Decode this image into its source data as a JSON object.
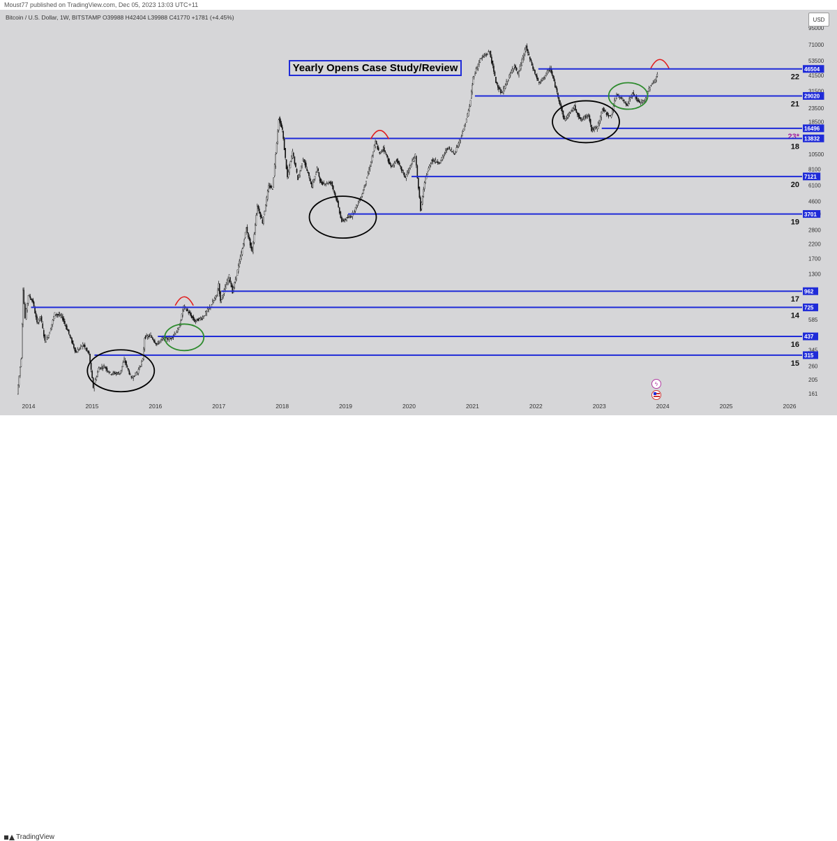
{
  "header": {
    "published": "Moust77 published on TradingView.com, Dec 05, 2023 13:03 UTC+11",
    "symbol_line": "Bitcoin / U.S. Dollar, 1W, BITSTAMP  O39988  H42404  L39988  C41770  +1781 (+4.45%)",
    "currency_button": "USD"
  },
  "footer": {
    "brand": "TradingView"
  },
  "badges": {
    "lightning_icon": "lightning-icon",
    "flag_icon": "us-flag-icon"
  },
  "colors": {
    "level_line": "#1f2bd8",
    "plot_bg": "#d6d6d8",
    "top_mark": "#e11d1d",
    "green_circle": "#2e8b2e",
    "black_circle": "#000000",
    "label_23": "#a020a0"
  },
  "chart_data": {
    "type": "candlestick",
    "title": "Yearly Opens Case Study/Review",
    "scale": "log",
    "y_ticks": [
      95000,
      71000,
      53500,
      41500,
      31500,
      23500,
      18500,
      13500,
      10500,
      8100,
      6100,
      4600,
      3700,
      2800,
      2200,
      1700,
      1300,
      985,
      740,
      585,
      440,
      345,
      260,
      205,
      161
    ],
    "x_ticks": [
      "2014",
      "2015",
      "2016",
      "2017",
      "2018",
      "2019",
      "2020",
      "2021",
      "2022",
      "2023",
      "2024",
      "2025",
      "2026"
    ],
    "yearly_open_levels": [
      {
        "value": 46504,
        "label": "46504",
        "year": "22",
        "start_date": "2022-01"
      },
      {
        "value": 29020,
        "label": "29020",
        "year": "21",
        "start_date": "2021-01"
      },
      {
        "value": 16496,
        "label": "16496",
        "year": "23*",
        "start_date": "2023-01"
      },
      {
        "value": 13832,
        "label": "13832",
        "year": "18",
        "start_date": "2018-01"
      },
      {
        "value": 7121,
        "label": "7121",
        "year": "20",
        "start_date": "2020-01"
      },
      {
        "value": 3701,
        "label": "3701",
        "year": "19",
        "start_date": "2019-01"
      },
      {
        "value": 962,
        "label": "962",
        "year": "17",
        "start_date": "2017-01"
      },
      {
        "value": 725,
        "label": "725",
        "year": "14",
        "start_date": "2014-01"
      },
      {
        "value": 437,
        "label": "437",
        "year": "16",
        "start_date": "2016-01"
      },
      {
        "value": 315,
        "label": "315",
        "year": "15",
        "start_date": "2015-01"
      }
    ],
    "price_path": [
      [
        "2013-11-01",
        160
      ],
      [
        "2013-11-25",
        300
      ],
      [
        "2013-12-04",
        1000
      ],
      [
        "2013-12-18",
        600
      ],
      [
        "2014-01-05",
        900
      ],
      [
        "2014-02-01",
        800
      ],
      [
        "2014-02-25",
        550
      ],
      [
        "2014-03-15",
        620
      ],
      [
        "2014-04-10",
        400
      ],
      [
        "2014-05-01",
        450
      ],
      [
        "2014-06-05",
        650
      ],
      [
        "2014-07-15",
        620
      ],
      [
        "2014-08-20",
        480
      ],
      [
        "2014-10-05",
        330
      ],
      [
        "2014-11-15",
        380
      ],
      [
        "2014-12-20",
        320
      ],
      [
        "2015-01-14",
        180
      ],
      [
        "2015-02-15",
        250
      ],
      [
        "2015-03-15",
        260
      ],
      [
        "2015-04-20",
        230
      ],
      [
        "2015-06-15",
        230
      ],
      [
        "2015-07-10",
        290
      ],
      [
        "2015-08-20",
        210
      ],
      [
        "2015-09-25",
        235
      ],
      [
        "2015-10-25",
        290
      ],
      [
        "2015-11-05",
        430
      ],
      [
        "2015-12-10",
        440
      ],
      [
        "2016-01-15",
        380
      ],
      [
        "2016-02-15",
        420
      ],
      [
        "2016-04-01",
        420
      ],
      [
        "2016-05-20",
        500
      ],
      [
        "2016-06-17",
        740
      ],
      [
        "2016-07-20",
        650
      ],
      [
        "2016-08-20",
        570
      ],
      [
        "2016-10-05",
        610
      ],
      [
        "2016-11-20",
        740
      ],
      [
        "2016-12-25",
        900
      ],
      [
        "2017-01-05",
        1100
      ],
      [
        "2017-01-15",
        800
      ],
      [
        "2017-03-05",
        1250
      ],
      [
        "2017-03-25",
        950
      ],
      [
        "2017-05-20",
        2000
      ],
      [
        "2017-06-12",
        2900
      ],
      [
        "2017-07-16",
        1900
      ],
      [
        "2017-08-15",
        4300
      ],
      [
        "2017-09-15",
        3200
      ],
      [
        "2017-10-20",
        6000
      ],
      [
        "2017-11-12",
        5800
      ],
      [
        "2017-12-17",
        19500
      ],
      [
        "2018-01-07",
        16000
      ],
      [
        "2018-02-06",
        7000
      ],
      [
        "2018-03-05",
        11000
      ],
      [
        "2018-04-06",
        6800
      ],
      [
        "2018-05-05",
        9800
      ],
      [
        "2018-06-25",
        6000
      ],
      [
        "2018-07-25",
        8200
      ],
      [
        "2018-08-15",
        6300
      ],
      [
        "2018-10-15",
        6400
      ],
      [
        "2018-11-20",
        4500
      ],
      [
        "2018-12-15",
        3250
      ],
      [
        "2019-02-10",
        3600
      ],
      [
        "2019-04-05",
        5000
      ],
      [
        "2019-05-25",
        8500
      ],
      [
        "2019-06-26",
        13000
      ],
      [
        "2019-07-20",
        10500
      ],
      [
        "2019-08-10",
        11800
      ],
      [
        "2019-09-25",
        8300
      ],
      [
        "2019-10-26",
        9500
      ],
      [
        "2019-12-15",
        7000
      ],
      [
        "2020-02-12",
        10300
      ],
      [
        "2020-03-12",
        4000
      ],
      [
        "2020-04-10",
        7000
      ],
      [
        "2020-05-15",
        9500
      ],
      [
        "2020-07-01",
        9100
      ],
      [
        "2020-08-15",
        11800
      ],
      [
        "2020-09-25",
        10700
      ],
      [
        "2020-11-15",
        16000
      ],
      [
        "2020-12-20",
        24000
      ],
      [
        "2021-01-10",
        40000
      ],
      [
        "2021-02-20",
        55000
      ],
      [
        "2021-04-14",
        63000
      ],
      [
        "2021-05-20",
        37000
      ],
      [
        "2021-06-22",
        30000
      ],
      [
        "2021-07-25",
        38000
      ],
      [
        "2021-09-05",
        50000
      ],
      [
        "2021-09-25",
        42000
      ],
      [
        "2021-11-10",
        68000
      ],
      [
        "2021-12-20",
        47000
      ],
      [
        "2022-01-25",
        36000
      ],
      [
        "2022-03-28",
        47000
      ],
      [
        "2022-05-12",
        29000
      ],
      [
        "2022-06-18",
        19000
      ],
      [
        "2022-08-15",
        24000
      ],
      [
        "2022-09-20",
        19000
      ],
      [
        "2022-11-06",
        21000
      ],
      [
        "2022-11-22",
        16000
      ],
      [
        "2022-12-25",
        16700
      ],
      [
        "2023-01-25",
        23000
      ],
      [
        "2023-03-10",
        20000
      ],
      [
        "2023-04-15",
        30000
      ],
      [
        "2023-06-15",
        25000
      ],
      [
        "2023-07-15",
        30500
      ],
      [
        "2023-08-20",
        26000
      ],
      [
        "2023-09-25",
        26500
      ],
      [
        "2023-10-25",
        34500
      ],
      [
        "2023-11-20",
        37500
      ],
      [
        "2023-12-05",
        41770
      ]
    ],
    "annotations": {
      "green_circles": [
        [
          "2016-06",
          430
        ],
        [
          "2023-06",
          29000
        ]
      ],
      "black_circles": [
        [
          "2015-06",
          240
        ],
        [
          "2018-12",
          3500
        ],
        [
          "2022-10",
          18500
        ]
      ],
      "top_arcs": [
        [
          "2016-06",
          740
        ],
        [
          "2019-07",
          13500
        ],
        [
          "2023-12",
          46504
        ]
      ]
    }
  }
}
